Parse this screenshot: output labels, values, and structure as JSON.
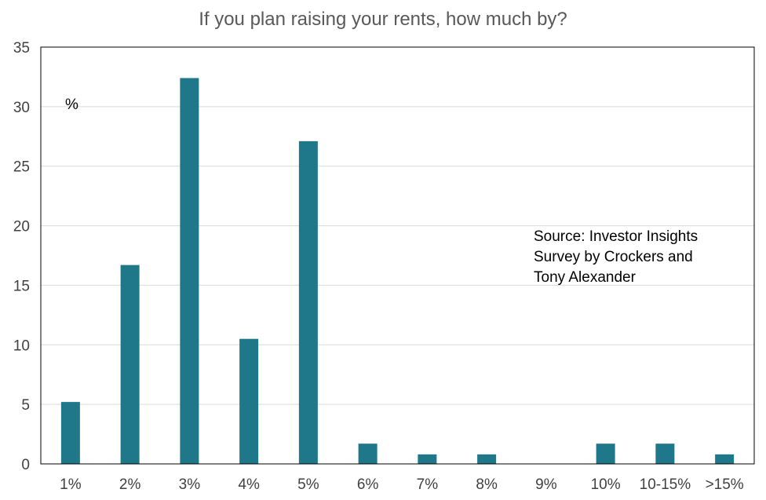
{
  "chart_data": {
    "type": "bar",
    "title": "If you plan raising your rents, how much by?",
    "unit_label": "%",
    "source_note": [
      "Source: Investor Insights",
      "Survey by Crockers and",
      "Tony Alexander"
    ],
    "categories": [
      "1%",
      "2%",
      "3%",
      "4%",
      "5%",
      "6%",
      "7%",
      "8%",
      "9%",
      "10%",
      "10-15%",
      ">15%"
    ],
    "values": [
      5.2,
      16.7,
      32.4,
      10.5,
      27.1,
      1.7,
      0.8,
      0.8,
      0,
      1.7,
      1.7,
      0.8
    ],
    "ylim": [
      0,
      35
    ],
    "yticks": [
      0,
      5,
      10,
      15,
      20,
      25,
      30,
      35
    ],
    "grid": true,
    "legend": "none",
    "bar_color": "#1f7889"
  }
}
